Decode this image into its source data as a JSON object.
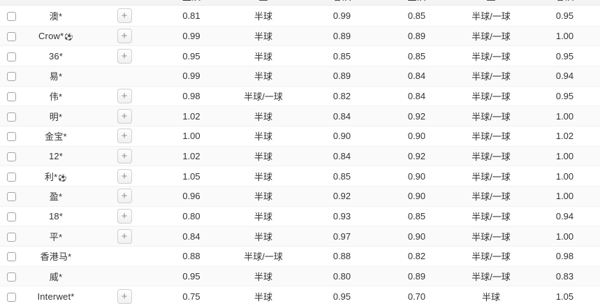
{
  "table": {
    "header_labels": [
      "主队",
      "盘",
      "客队",
      "主队",
      "盘",
      "客队"
    ],
    "rows": [
      {
        "name": "澳*",
        "has_ball": false,
        "has_expand": true,
        "odds": [
          "0.81",
          "半球",
          "0.99",
          "0.85",
          "半球/一球",
          "0.95"
        ]
      },
      {
        "name": "Crow*",
        "has_ball": true,
        "has_expand": true,
        "odds": [
          "0.99",
          "半球",
          "0.89",
          "0.89",
          "半球/一球",
          "1.00"
        ]
      },
      {
        "name": "36*",
        "has_ball": false,
        "has_expand": true,
        "odds": [
          "0.95",
          "半球",
          "0.85",
          "0.85",
          "半球/一球",
          "0.95"
        ]
      },
      {
        "name": "易*",
        "has_ball": false,
        "has_expand": false,
        "odds": [
          "0.99",
          "半球",
          "0.89",
          "0.84",
          "半球/一球",
          "0.94"
        ]
      },
      {
        "name": "伟*",
        "has_ball": false,
        "has_expand": true,
        "odds": [
          "0.98",
          "半球/一球",
          "0.82",
          "0.84",
          "半球/一球",
          "0.95"
        ]
      },
      {
        "name": "明*",
        "has_ball": false,
        "has_expand": true,
        "odds": [
          "1.02",
          "半球",
          "0.84",
          "0.92",
          "半球/一球",
          "1.00"
        ]
      },
      {
        "name": "金宝*",
        "has_ball": false,
        "has_expand": true,
        "odds": [
          "1.00",
          "半球",
          "0.90",
          "0.90",
          "半球/一球",
          "1.02"
        ]
      },
      {
        "name": "12*",
        "has_ball": false,
        "has_expand": true,
        "odds": [
          "1.02",
          "半球",
          "0.84",
          "0.92",
          "半球/一球",
          "1.00"
        ]
      },
      {
        "name": "利*",
        "has_ball": true,
        "has_expand": true,
        "odds": [
          "1.05",
          "半球",
          "0.85",
          "0.90",
          "半球/一球",
          "1.00"
        ]
      },
      {
        "name": "盈*",
        "has_ball": false,
        "has_expand": true,
        "odds": [
          "0.96",
          "半球",
          "0.92",
          "0.90",
          "半球/一球",
          "1.00"
        ]
      },
      {
        "name": "18*",
        "has_ball": false,
        "has_expand": true,
        "odds": [
          "0.80",
          "半球",
          "0.93",
          "0.85",
          "半球/一球",
          "0.94"
        ]
      },
      {
        "name": "平*",
        "has_ball": false,
        "has_expand": true,
        "odds": [
          "0.84",
          "半球",
          "0.97",
          "0.90",
          "半球/一球",
          "1.00"
        ]
      },
      {
        "name": "香港马*",
        "has_ball": false,
        "has_expand": false,
        "odds": [
          "0.88",
          "半球/一球",
          "0.88",
          "0.82",
          "半球/一球",
          "0.98"
        ]
      },
      {
        "name": "威*",
        "has_ball": false,
        "has_expand": false,
        "odds": [
          "0.95",
          "半球",
          "0.80",
          "0.89",
          "半球/一球",
          "0.83"
        ]
      },
      {
        "name": "Interwet*",
        "has_ball": false,
        "has_expand": true,
        "odds": [
          "0.75",
          "半球",
          "0.95",
          "0.70",
          "半球",
          "1.05"
        ]
      }
    ]
  },
  "icons": {
    "expand_plus": "+",
    "soccer_ball": "⚽"
  },
  "colors": {
    "header_bg": "#f4f4f5",
    "row_alt_bg": "#fafafa",
    "row_border": "#f1f1f1",
    "text": "#333333",
    "button_border": "#cfcfcf"
  }
}
